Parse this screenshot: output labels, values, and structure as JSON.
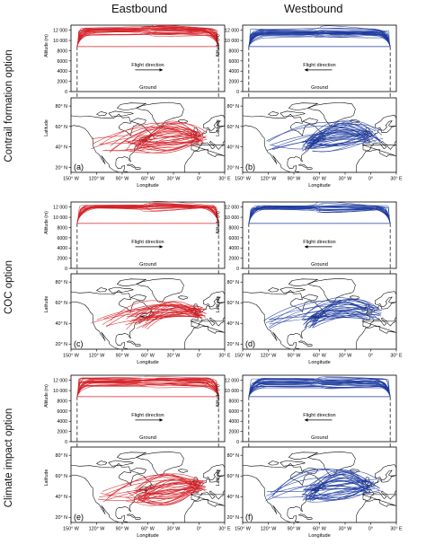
{
  "columns": [
    "Eastbound",
    "Westbound"
  ],
  "rows": [
    "Contrail formation option",
    "COC option",
    "Climate impact option"
  ],
  "colors": {
    "eastbound": "#d42027",
    "westbound": "#1d3a9e",
    "land_outline": "#000000"
  },
  "chart_data": [
    {
      "type": "line",
      "panel": "a",
      "row": "Contrail formation option",
      "column": "Eastbound",
      "profile": {
        "ylabel": "Altitude (m)",
        "yticks": [
          "0",
          "2000",
          "4000",
          "6000",
          "8000",
          "10 000",
          "12 000"
        ],
        "ylim": [
          0,
          13000
        ],
        "base_altitude": 8800,
        "cruise_altitude_range": [
          11000,
          12500
        ],
        "flight_direction_label": "Flight direction",
        "ground_label": "Ground"
      },
      "map": {
        "xlabel": "Longitude",
        "ylabel": "Latitude",
        "xticks": [
          "150° W",
          "120° W",
          "90° W",
          "60° W",
          "30° W",
          "0°",
          "30° E"
        ],
        "xlim": [
          -150,
          30
        ],
        "yticks": [
          "20° N",
          "40° N",
          "60° N",
          "80° N"
        ],
        "ylim": [
          15,
          88
        ],
        "route_origin": [
          -74,
          41
        ],
        "route_destination": [
          2,
          50
        ],
        "route_latitude_spread": [
          35,
          65
        ]
      },
      "series": [
        {
          "name": "Eastbound",
          "color": "#d42027",
          "routes": 40
        }
      ]
    },
    {
      "type": "line",
      "panel": "b",
      "row": "Contrail formation option",
      "column": "Westbound",
      "profile": {
        "ylabel": "Altitude (m)",
        "yticks": [
          "0",
          "2000",
          "4000",
          "6000",
          "8000",
          "10 000",
          "12 000"
        ],
        "ylim": [
          0,
          13000
        ],
        "base_altitude": 8800,
        "cruise_altitude_range": [
          10500,
          12300
        ],
        "flight_direction_label": "Flight direction",
        "ground_label": "Ground"
      },
      "map": {
        "xlabel": "Longitude",
        "ylabel": "Latitude",
        "xticks": [
          "150° W",
          "120° W",
          "90° W",
          "60° W",
          "30° W",
          "0°",
          "30° E"
        ],
        "xlim": [
          -150,
          30
        ],
        "yticks": [
          "20° N",
          "40° N",
          "60° N",
          "80° N"
        ],
        "ylim": [
          15,
          88
        ],
        "route_origin": [
          2,
          50
        ],
        "route_destination": [
          -74,
          41
        ],
        "route_latitude_spread": [
          38,
          66
        ]
      },
      "series": [
        {
          "name": "Westbound",
          "color": "#1d3a9e",
          "routes": 40
        }
      ]
    },
    {
      "type": "line",
      "panel": "c",
      "row": "COC option",
      "column": "Eastbound",
      "profile": {
        "ylabel": "Altitude (m)",
        "yticks": [
          "0",
          "2000",
          "4000",
          "6000",
          "8000",
          "10 000",
          "12 000"
        ],
        "ylim": [
          0,
          13000
        ],
        "base_altitude": 8800,
        "cruise_altitude_range": [
          11800,
          12400
        ],
        "flight_direction_label": "Flight direction",
        "ground_label": "Ground"
      },
      "map": {
        "xlabel": "Longitude",
        "ylabel": "Latitude",
        "xticks": [
          "150° W",
          "120° W",
          "90° W",
          "60° W",
          "30° W",
          "0°",
          "30° E"
        ],
        "xlim": [
          -150,
          30
        ],
        "yticks": [
          "20° N",
          "40° N",
          "60° N",
          "80° N"
        ],
        "ylim": [
          15,
          88
        ],
        "route_origin": [
          -74,
          41
        ],
        "route_destination": [
          2,
          50
        ],
        "route_latitude_spread": [
          45,
          62
        ]
      },
      "series": [
        {
          "name": "Eastbound",
          "color": "#d42027",
          "routes": 32
        }
      ]
    },
    {
      "type": "line",
      "panel": "d",
      "row": "COC option",
      "column": "Westbound",
      "profile": {
        "ylabel": "Altitude (m)",
        "yticks": [
          "0",
          "2000",
          "4000",
          "6000",
          "8000",
          "10 000",
          "12 000"
        ],
        "ylim": [
          0,
          13000
        ],
        "base_altitude": 8800,
        "cruise_altitude_range": [
          11500,
          12300
        ],
        "flight_direction_label": "Flight direction",
        "ground_label": "Ground"
      },
      "map": {
        "xlabel": "Longitude",
        "ylabel": "Latitude",
        "xticks": [
          "150° W",
          "120° W",
          "90° W",
          "60° W",
          "30° W",
          "0°",
          "30° E"
        ],
        "xlim": [
          -150,
          30
        ],
        "yticks": [
          "20° N",
          "40° N",
          "60° N",
          "80° N"
        ],
        "ylim": [
          15,
          88
        ],
        "route_origin": [
          2,
          50
        ],
        "route_destination": [
          -74,
          41
        ],
        "route_latitude_spread": [
          45,
          64
        ]
      },
      "series": [
        {
          "name": "Westbound",
          "color": "#1d3a9e",
          "routes": 32
        }
      ]
    },
    {
      "type": "line",
      "panel": "e",
      "row": "Climate impact option",
      "column": "Eastbound",
      "profile": {
        "ylabel": "Altitude (m)",
        "yticks": [
          "0",
          "2000",
          "4000",
          "6000",
          "8000",
          "10 000",
          "12 000"
        ],
        "ylim": [
          0,
          13000
        ],
        "base_altitude": 8800,
        "cruise_altitude_range": [
          10800,
          12500
        ],
        "flight_direction_label": "Flight direction",
        "ground_label": "Ground"
      },
      "map": {
        "xlabel": "Longitude",
        "ylabel": "Latitude",
        "xticks": [
          "150° W",
          "120° W",
          "90° W",
          "60° W",
          "30° W",
          "0°",
          "30° E"
        ],
        "xlim": [
          -150,
          30
        ],
        "yticks": [
          "20° N",
          "40° N",
          "60° N",
          "80° N"
        ],
        "ylim": [
          15,
          88
        ],
        "route_origin": [
          -74,
          41
        ],
        "route_destination": [
          2,
          50
        ],
        "route_latitude_spread": [
          32,
          62
        ]
      },
      "series": [
        {
          "name": "Eastbound",
          "color": "#d42027",
          "routes": 40
        }
      ]
    },
    {
      "type": "line",
      "panel": "f",
      "row": "Climate impact option",
      "column": "Westbound",
      "profile": {
        "ylabel": "Altitude (m)",
        "yticks": [
          "0",
          "2000",
          "4000",
          "6000",
          "8000",
          "10 000",
          "12 000"
        ],
        "ylim": [
          0,
          13000
        ],
        "base_altitude": 8800,
        "cruise_altitude_range": [
          10500,
          12400
        ],
        "flight_direction_label": "Flight direction",
        "ground_label": "Ground"
      },
      "map": {
        "xlabel": "Longitude",
        "ylabel": "Latitude",
        "xticks": [
          "150° W",
          "120° W",
          "90° W",
          "60° W",
          "30° W",
          "0°",
          "30° E"
        ],
        "xlim": [
          -150,
          30
        ],
        "yticks": [
          "20° N",
          "40° N",
          "60° N",
          "80° N"
        ],
        "ylim": [
          15,
          88
        ],
        "route_origin": [
          2,
          50
        ],
        "route_destination": [
          -74,
          41
        ],
        "route_latitude_spread": [
          36,
          68
        ]
      },
      "series": [
        {
          "name": "Westbound",
          "color": "#1d3a9e",
          "routes": 40
        }
      ]
    }
  ]
}
